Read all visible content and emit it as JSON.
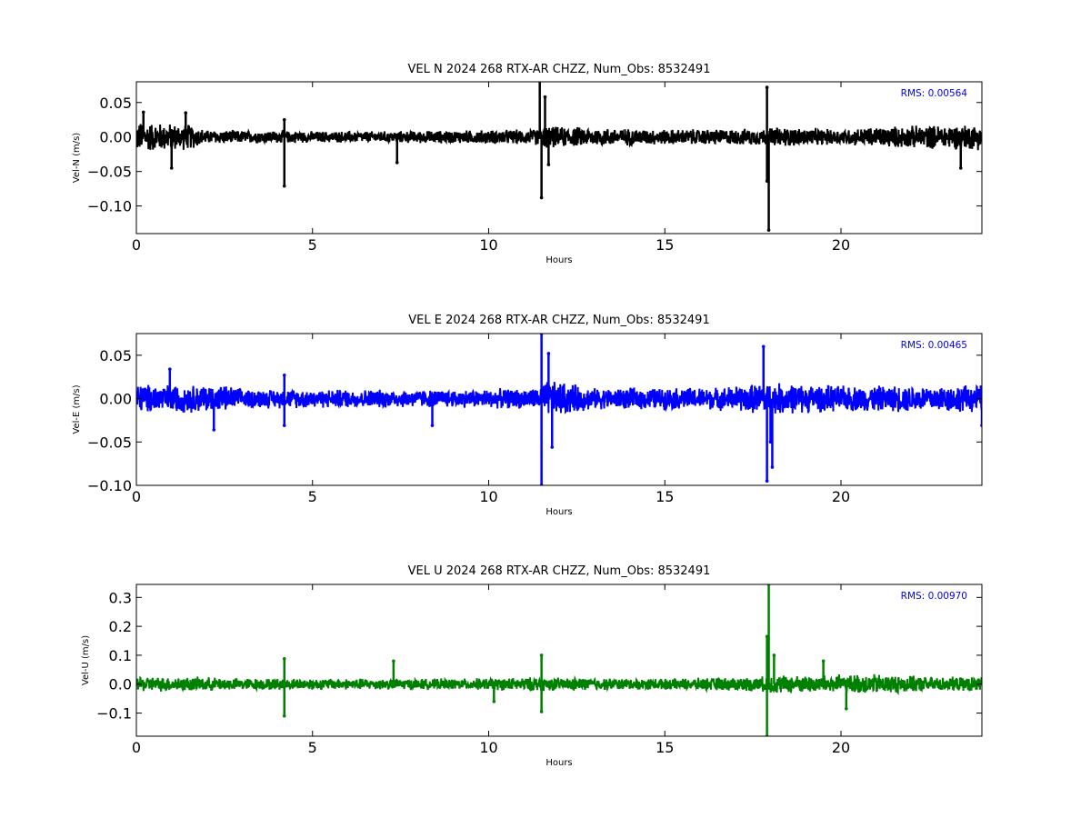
{
  "chart_data": [
    {
      "type": "line",
      "title": "VEL N 2024 268 RTX-AR  CHZZ, Num_Obs: 8532491",
      "xlabel": "Hours",
      "ylabel": "Vel-N (m/s)",
      "xlim": [
        0,
        24
      ],
      "ylim": [
        -0.14,
        0.08
      ],
      "xticks": [
        0,
        5,
        10,
        15,
        20
      ],
      "yticks": [
        -0.1,
        -0.05,
        0.0,
        0.05
      ],
      "ytick_labels": [
        "−0.10",
        "−0.05",
        "0.00",
        "0.05"
      ],
      "xtick_labels": [
        "0",
        "5",
        "10",
        "15",
        "20"
      ],
      "color": "#000000",
      "rms_text": "RMS:  0.00564",
      "grid": false,
      "legend": "none",
      "series": [
        {
          "base_envelope": [
            [
              0,
              0.024
            ],
            [
              1.5,
              0.02
            ],
            [
              2,
              0.011
            ],
            [
              5,
              0.009
            ],
            [
              7,
              0.009
            ],
            [
              10,
              0.011
            ],
            [
              11.3,
              0.012
            ],
            [
              11.6,
              0.018
            ],
            [
              12,
              0.016
            ],
            [
              15,
              0.012
            ],
            [
              17.8,
              0.013
            ],
            [
              18,
              0.016
            ],
            [
              20,
              0.012
            ],
            [
              21,
              0.016
            ],
            [
              23,
              0.019
            ],
            [
              24,
              0.02
            ]
          ],
          "spikes": [
            [
              0.2,
              0.036
            ],
            [
              1.0,
              -0.045
            ],
            [
              1.4,
              0.035
            ],
            [
              4.2,
              -0.071
            ],
            [
              4.2,
              0.025
            ],
            [
              7.4,
              -0.037
            ],
            [
              11.45,
              0.085
            ],
            [
              11.5,
              -0.088
            ],
            [
              11.6,
              0.058
            ],
            [
              11.7,
              -0.04
            ],
            [
              17.9,
              0.072
            ],
            [
              17.9,
              -0.064
            ],
            [
              17.95,
              -0.135
            ],
            [
              23.4,
              -0.045
            ]
          ]
        }
      ]
    },
    {
      "type": "line",
      "title": "VEL E 2024 268 RTX-AR  CHZZ, Num_Obs: 8532491",
      "xlabel": "Hours",
      "ylabel": "Vel-E (m/s)",
      "xlim": [
        0,
        24
      ],
      "ylim": [
        -0.1,
        0.075
      ],
      "xticks": [
        0,
        5,
        10,
        15,
        20
      ],
      "yticks": [
        -0.1,
        -0.05,
        0.0,
        0.05
      ],
      "ytick_labels": [
        "−0.10",
        "−0.05",
        "0.00",
        "0.05"
      ],
      "xtick_labels": [
        "0",
        "5",
        "10",
        "15",
        "20"
      ],
      "color": "#0000ff",
      "rms_text": "RMS:  0.00465",
      "grid": false,
      "legend": "none",
      "series": [
        {
          "base_envelope": [
            [
              0,
              0.018
            ],
            [
              2.5,
              0.017
            ],
            [
              3,
              0.012
            ],
            [
              9,
              0.011
            ],
            [
              11.4,
              0.013
            ],
            [
              11.6,
              0.022
            ],
            [
              12.2,
              0.02
            ],
            [
              13,
              0.013
            ],
            [
              16.5,
              0.014
            ],
            [
              18,
              0.02
            ],
            [
              20,
              0.016
            ],
            [
              24,
              0.017
            ]
          ],
          "spikes": [
            [
              0.95,
              0.034
            ],
            [
              2.2,
              -0.036
            ],
            [
              4.2,
              0.027
            ],
            [
              4.2,
              -0.031
            ],
            [
              8.4,
              -0.031
            ],
            [
              11.5,
              0.075
            ],
            [
              11.5,
              -0.1
            ],
            [
              11.7,
              0.052
            ],
            [
              11.8,
              -0.056
            ],
            [
              17.8,
              0.06
            ],
            [
              17.9,
              -0.095
            ],
            [
              18.05,
              -0.079
            ],
            [
              18.0,
              -0.05
            ],
            [
              24,
              -0.031
            ]
          ]
        }
      ]
    },
    {
      "type": "line",
      "title": "VEL U 2024 268 RTX-AR  CHZZ, Num_Obs: 8532491",
      "xlabel": "Hours",
      "ylabel": "Vel-U (m/s)",
      "xlim": [
        0,
        24
      ],
      "ylim": [
        -0.18,
        0.345
      ],
      "xticks": [
        0,
        5,
        10,
        15,
        20
      ],
      "yticks": [
        -0.1,
        0.0,
        0.1,
        0.2,
        0.3
      ],
      "ytick_labels": [
        "−0.1",
        "0.0",
        "0.1",
        "0.2",
        "0.3"
      ],
      "xtick_labels": [
        "0",
        "5",
        "10",
        "15",
        "20"
      ],
      "color": "#008000",
      "rms_text": "RMS:  0.00970",
      "grid": false,
      "legend": "none",
      "series": [
        {
          "base_envelope": [
            [
              0,
              0.028
            ],
            [
              2,
              0.026
            ],
            [
              3,
              0.022
            ],
            [
              9,
              0.02
            ],
            [
              11.5,
              0.026
            ],
            [
              12,
              0.024
            ],
            [
              15,
              0.02
            ],
            [
              17.8,
              0.028
            ],
            [
              18,
              0.035
            ],
            [
              19,
              0.032
            ],
            [
              21,
              0.038
            ],
            [
              22,
              0.03
            ],
            [
              23,
              0.026
            ],
            [
              24,
              0.028
            ]
          ],
          "spikes": [
            [
              4.2,
              0.088
            ],
            [
              4.2,
              -0.11
            ],
            [
              7.3,
              0.08
            ],
            [
              10.15,
              -0.06
            ],
            [
              11.5,
              0.1
            ],
            [
              11.5,
              -0.095
            ],
            [
              17.9,
              0.165
            ],
            [
              17.9,
              -0.18
            ],
            [
              17.95,
              0.345
            ],
            [
              18.1,
              0.1
            ],
            [
              19.5,
              0.08
            ],
            [
              20.15,
              -0.085
            ]
          ]
        }
      ]
    }
  ]
}
